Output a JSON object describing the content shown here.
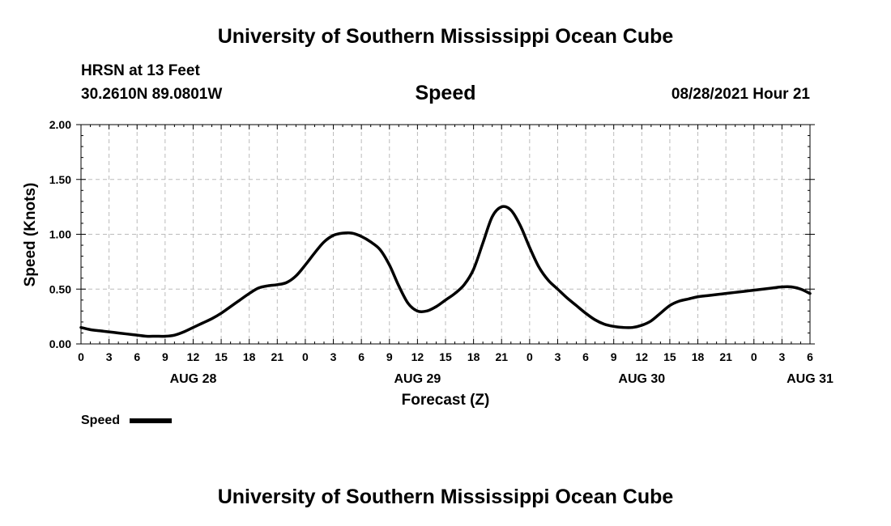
{
  "header": {
    "title": "University of Southern Mississippi Ocean Cube",
    "station_name": "HRSN at 13 Feet",
    "station_coords": "30.2610N  89.0801W",
    "variable": "Speed",
    "valid_time": "08/28/2021 Hour 21"
  },
  "footer": {
    "title": "University of Southern Mississippi Ocean Cube"
  },
  "chart_data": {
    "type": "line",
    "title": "Speed",
    "xlabel": "Forecast (Z)",
    "ylabel": "Speed (Knots)",
    "ylim": [
      0,
      2
    ],
    "xlim": [
      0,
      78
    ],
    "grid": true,
    "y_ticks": [
      "0.00",
      "0.50",
      "1.00",
      "1.50",
      "2.00"
    ],
    "x_tick_labels": [
      "0",
      "3",
      "6",
      "9",
      "12",
      "15",
      "18",
      "21",
      "0",
      "3",
      "6",
      "9",
      "12",
      "15",
      "18",
      "21",
      "0",
      "3",
      "6",
      "9",
      "12",
      "15",
      "18",
      "21",
      "0",
      "3",
      "6"
    ],
    "date_labels": [
      {
        "label": "AUG 28",
        "hour": 12
      },
      {
        "label": "AUG 29",
        "hour": 36
      },
      {
        "label": "AUG 30",
        "hour": 60
      },
      {
        "label": "AUG 31",
        "hour": 78
      }
    ],
    "legend": {
      "label": "Speed",
      "placement": "bottom-left"
    },
    "series": [
      {
        "name": "Speed",
        "color": "#000000",
        "x": [
          0,
          1,
          2,
          3,
          4,
          5,
          6,
          7,
          8,
          9,
          10,
          11,
          12,
          13,
          14,
          15,
          16,
          17,
          18,
          19,
          20,
          21,
          22,
          23,
          24,
          25,
          26,
          27,
          28,
          29,
          30,
          31,
          32,
          33,
          34,
          35,
          36,
          37,
          38,
          39,
          40,
          41,
          42,
          43,
          44,
          45,
          46,
          47,
          48,
          49,
          50,
          51,
          52,
          53,
          54,
          55,
          56,
          57,
          58,
          59,
          60,
          61,
          62,
          63,
          64,
          65,
          66,
          67,
          68,
          69,
          70,
          71,
          72,
          73,
          74,
          75,
          76,
          77,
          78
        ],
        "values": [
          0.15,
          0.13,
          0.12,
          0.11,
          0.1,
          0.09,
          0.08,
          0.07,
          0.07,
          0.07,
          0.08,
          0.11,
          0.15,
          0.19,
          0.23,
          0.28,
          0.34,
          0.4,
          0.46,
          0.51,
          0.53,
          0.54,
          0.56,
          0.62,
          0.72,
          0.83,
          0.93,
          0.99,
          1.01,
          1.01,
          0.98,
          0.93,
          0.86,
          0.72,
          0.53,
          0.37,
          0.3,
          0.3,
          0.34,
          0.4,
          0.46,
          0.54,
          0.68,
          0.92,
          1.16,
          1.25,
          1.22,
          1.08,
          0.88,
          0.7,
          0.58,
          0.5,
          0.42,
          0.35,
          0.28,
          0.22,
          0.18,
          0.16,
          0.15,
          0.15,
          0.17,
          0.21,
          0.28,
          0.35,
          0.39,
          0.41,
          0.43,
          0.44,
          0.45,
          0.46,
          0.47,
          0.48,
          0.49,
          0.5,
          0.51,
          0.52,
          0.52,
          0.5,
          0.46
        ]
      }
    ]
  }
}
